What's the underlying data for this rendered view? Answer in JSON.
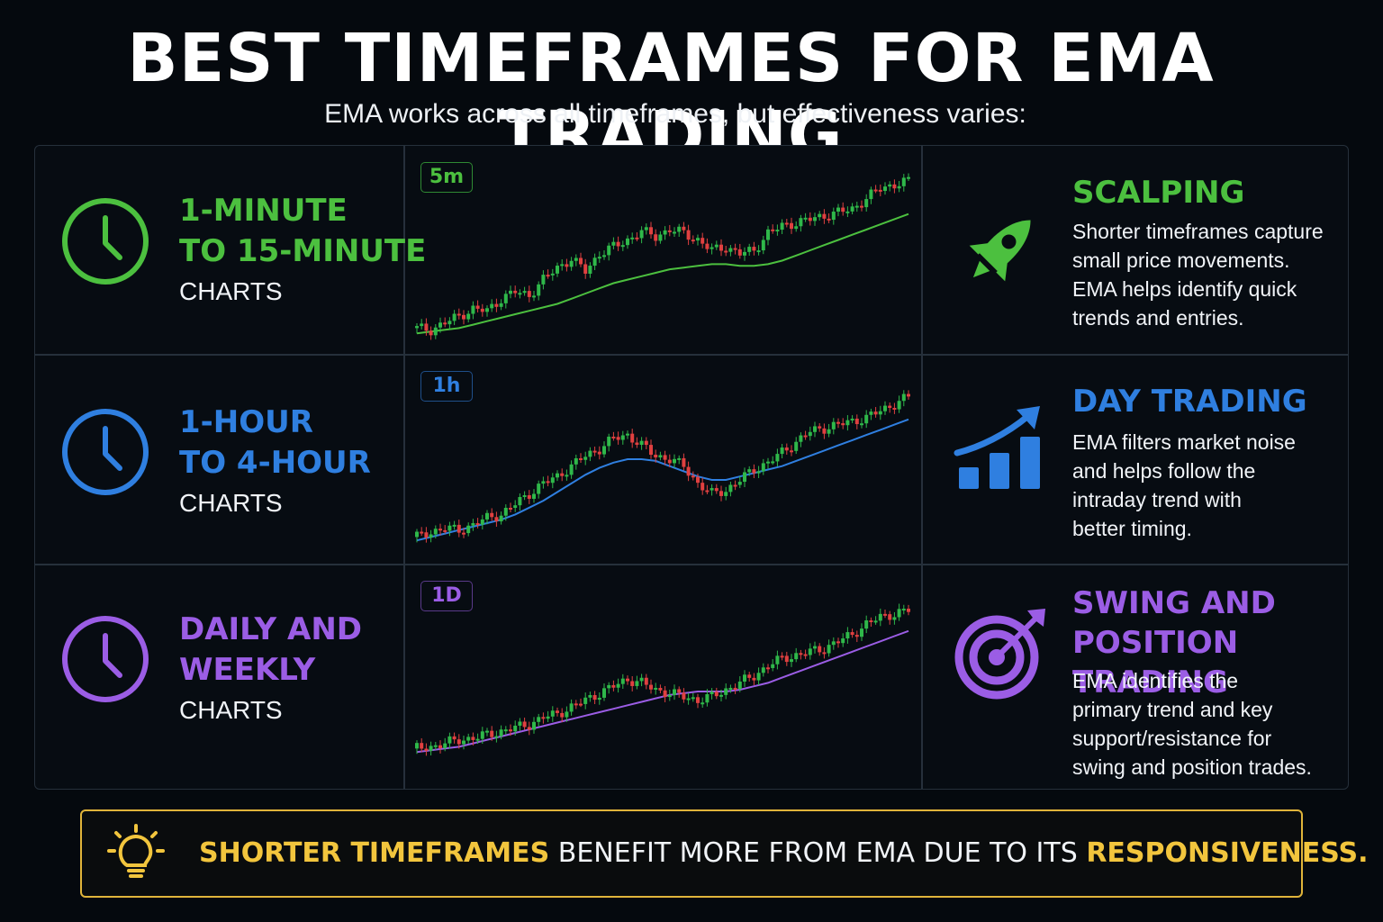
{
  "title": "BEST TIMEFRAMES FOR EMA TRADING",
  "subtitle": "EMA works across all timeframes, but effectiveness varies:",
  "colors": {
    "green": "#4cc03f",
    "blue": "#2f7fe0",
    "purple": "#9b5de5",
    "gold": "#f2c53d",
    "candle_up": "#2fb84a",
    "candle_down": "#e04040"
  },
  "rows": [
    {
      "timeframe": {
        "line1": "1-MINUTE",
        "line2": "TO 15-MINUTE",
        "line3": "CHARTS"
      },
      "badge": "5m",
      "icon": "clock-icon",
      "style_title": [
        "SCALPING"
      ],
      "style_desc": [
        "Shorter timeframes capture",
        "small price movements.",
        "EMA helps identify quick",
        "trends and entries."
      ],
      "style_icon": "rocket-icon",
      "accent": "#4cc03f"
    },
    {
      "timeframe": {
        "line1": "1-HOUR",
        "line2": "TO 4-HOUR",
        "line3": "CHARTS"
      },
      "badge": "1h",
      "icon": "clock-icon",
      "style_title": [
        "DAY TRADING"
      ],
      "style_desc": [
        "EMA filters market noise",
        "and helps follow the",
        "intraday trend with",
        "better timing."
      ],
      "style_icon": "growth-chart-icon",
      "accent": "#2f7fe0"
    },
    {
      "timeframe": {
        "line1": "DAILY AND",
        "line2": "WEEKLY",
        "line3": "CHARTS"
      },
      "badge": "1D",
      "icon": "clock-icon",
      "style_title": [
        "SWING AND",
        "POSITION TRADING"
      ],
      "style_desc": [
        "EMA identifies the",
        "primary trend and key",
        "support/resistance for",
        "swing and position trades."
      ],
      "style_icon": "target-icon",
      "accent": "#9b5de5"
    }
  ],
  "footer": {
    "highlight1": "SHORTER TIMEFRAMES",
    "middle": "BENEFIT MORE FROM EMA DUE TO ITS",
    "highlight2": "RESPONSIVENESS.",
    "icon": "lightbulb-icon"
  },
  "chart_data": [
    {
      "type": "line",
      "badge": "5m",
      "series": [
        {
          "values": [
            2,
            3,
            4,
            5,
            7,
            9,
            11,
            13,
            15,
            17,
            19,
            22,
            25,
            28,
            31,
            33,
            35,
            37,
            39,
            40,
            41,
            42,
            42,
            41,
            41,
            42,
            44,
            47,
            50,
            53,
            56,
            59,
            62,
            65,
            68,
            71
          ]
        },
        {
          "values": [
            5,
            4,
            8,
            12,
            16,
            15,
            22,
            26,
            24,
            33,
            40,
            45,
            38,
            48,
            52,
            56,
            61,
            58,
            62,
            60,
            56,
            50,
            52,
            48,
            50,
            60,
            64,
            66,
            68,
            70,
            72,
            74,
            80,
            86,
            88,
            90
          ]
        }
      ]
    },
    {
      "type": "line",
      "badge": "1h",
      "series": [
        {
          "values": [
            3,
            5,
            7,
            9,
            11,
            13,
            15,
            18,
            22,
            26,
            31,
            36,
            41,
            45,
            48,
            50,
            50,
            49,
            46,
            43,
            40,
            38,
            38,
            40,
            42,
            44,
            46,
            49,
            52,
            55,
            58,
            61,
            64,
            67,
            70,
            73
          ]
        },
        {
          "values": [
            5,
            8,
            10,
            9,
            12,
            16,
            18,
            24,
            30,
            36,
            40,
            46,
            52,
            56,
            62,
            64,
            58,
            52,
            50,
            46,
            36,
            30,
            32,
            38,
            44,
            48,
            54,
            60,
            66,
            68,
            70,
            72,
            74,
            78,
            82,
            86
          ]
        }
      ]
    },
    {
      "type": "line",
      "badge": "1D",
      "series": [
        {
          "values": [
            2,
            3,
            4,
            5,
            7,
            9,
            11,
            13,
            15,
            17,
            19,
            21,
            23,
            25,
            27,
            29,
            31,
            33,
            35,
            36,
            37,
            37,
            37,
            38,
            40,
            42,
            45,
            48,
            51,
            54,
            57,
            60,
            63,
            66,
            69,
            72
          ]
        },
        {
          "values": [
            4,
            5,
            7,
            9,
            10,
            12,
            14,
            16,
            18,
            22,
            24,
            28,
            32,
            36,
            40,
            44,
            42,
            38,
            36,
            34,
            32,
            34,
            38,
            42,
            46,
            52,
            56,
            58,
            60,
            62,
            66,
            70,
            76,
            80,
            82,
            84
          ]
        }
      ]
    }
  ]
}
